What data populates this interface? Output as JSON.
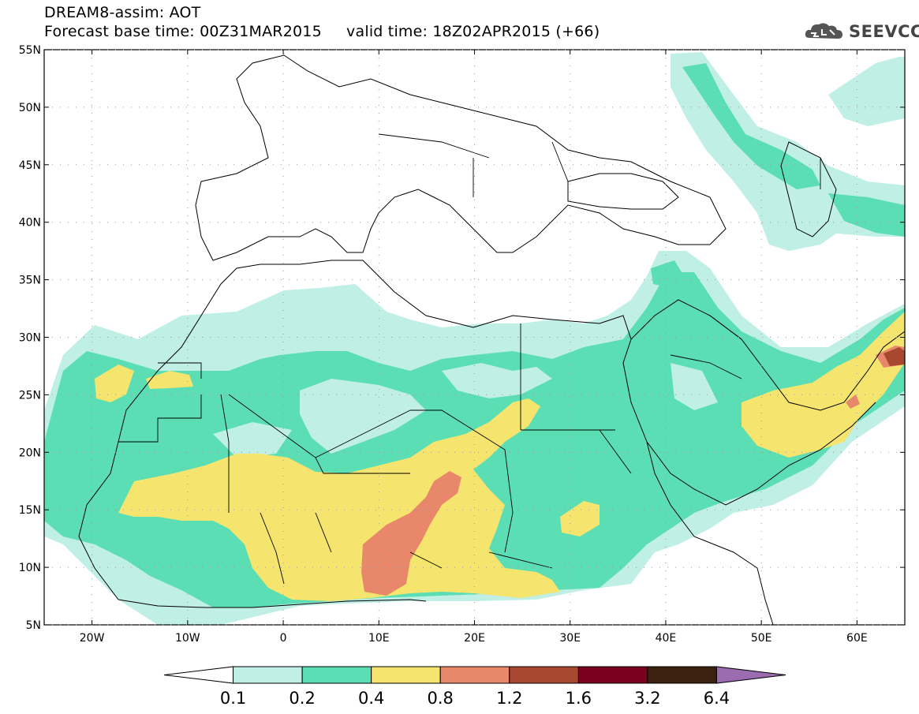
{
  "title": {
    "line1": "DREAM8-assim: AOT",
    "line2": "Forecast base time: 00Z31MAR2015     valid time: 18Z02APR2015 (+66)"
  },
  "logo": {
    "text": "SEEVCCC",
    "icon": "cloud-icon"
  },
  "map": {
    "lon_range": [
      -25,
      65
    ],
    "lat_range": [
      5,
      55
    ],
    "lon_ticks": [
      {
        "value": -20,
        "label": "20W"
      },
      {
        "value": -10,
        "label": "10W"
      },
      {
        "value": 0,
        "label": "0"
      },
      {
        "value": 10,
        "label": "10E"
      },
      {
        "value": 20,
        "label": "20E"
      },
      {
        "value": 30,
        "label": "30E"
      },
      {
        "value": 40,
        "label": "40E"
      },
      {
        "value": 50,
        "label": "50E"
      },
      {
        "value": 60,
        "label": "60E"
      }
    ],
    "lat_ticks": [
      {
        "value": 5,
        "label": "5N"
      },
      {
        "value": 10,
        "label": "10N"
      },
      {
        "value": 15,
        "label": "15N"
      },
      {
        "value": 20,
        "label": "20N"
      },
      {
        "value": 25,
        "label": "25N"
      },
      {
        "value": 30,
        "label": "30N"
      },
      {
        "value": 35,
        "label": "35N"
      },
      {
        "value": 40,
        "label": "40N"
      },
      {
        "value": 45,
        "label": "45N"
      },
      {
        "value": 50,
        "label": "50N"
      },
      {
        "value": 55,
        "label": "55N"
      }
    ],
    "grid": "dotted"
  },
  "colorbar": {
    "labels": [
      "0.1",
      "0.2",
      "0.4",
      "0.8",
      "1.2",
      "1.6",
      "3.2",
      "6.4"
    ],
    "colors": [
      "#ffffff",
      "#c0efe5",
      "#5cdeb4",
      "#f5e46e",
      "#e8876a",
      "#a84830",
      "#7a0020",
      "#3b2210",
      "#9b6cb0"
    ]
  }
}
